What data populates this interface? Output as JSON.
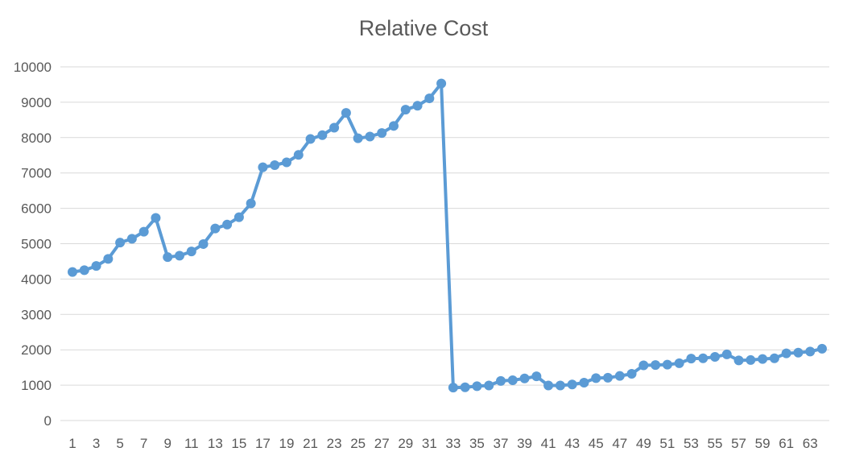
{
  "chart_data": {
    "type": "line",
    "title": "Relative Cost",
    "xlabel": "",
    "ylabel": "",
    "ylim": [
      0,
      10000
    ],
    "y_ticks": [
      0,
      1000,
      2000,
      3000,
      4000,
      5000,
      6000,
      7000,
      8000,
      9000,
      10000
    ],
    "x_tick_labels": [
      "1",
      "3",
      "5",
      "7",
      "9",
      "11",
      "13",
      "15",
      "17",
      "19",
      "21",
      "23",
      "25",
      "27",
      "29",
      "31",
      "33",
      "35",
      "37",
      "39",
      "41",
      "43",
      "45",
      "47",
      "49",
      "51",
      "53",
      "55",
      "57",
      "59",
      "61",
      "63"
    ],
    "grid": true,
    "legend": "none",
    "series_color": "#5b9bd5",
    "x": [
      1,
      2,
      3,
      4,
      5,
      6,
      7,
      8,
      9,
      10,
      11,
      12,
      13,
      14,
      15,
      16,
      17,
      18,
      19,
      20,
      21,
      22,
      23,
      24,
      25,
      26,
      27,
      28,
      29,
      30,
      31,
      32,
      33,
      34,
      35,
      36,
      37,
      38,
      39,
      40,
      41,
      42,
      43,
      44,
      45,
      46,
      47,
      48,
      49,
      50,
      51,
      52,
      53,
      54,
      55,
      56,
      57,
      58,
      59,
      60,
      61,
      62,
      63,
      64
    ],
    "series": [
      {
        "values": [
          4200,
          4250,
          4370,
          4570,
          5030,
          5140,
          5340,
          5730,
          4620,
          4660,
          4780,
          4990,
          5430,
          5540,
          5750,
          6140,
          7160,
          7220,
          7300,
          7510,
          7960,
          8070,
          8280,
          8700,
          7980,
          8030,
          8130,
          8330,
          8790,
          8900,
          9110,
          9530,
          930,
          940,
          970,
          990,
          1120,
          1140,
          1190,
          1250,
          990,
          990,
          1020,
          1070,
          1200,
          1210,
          1260,
          1320,
          1560,
          1570,
          1580,
          1620,
          1750,
          1760,
          1800,
          1870,
          1700,
          1710,
          1740,
          1760,
          1900,
          1920,
          1950,
          2030
        ]
      }
    ]
  }
}
